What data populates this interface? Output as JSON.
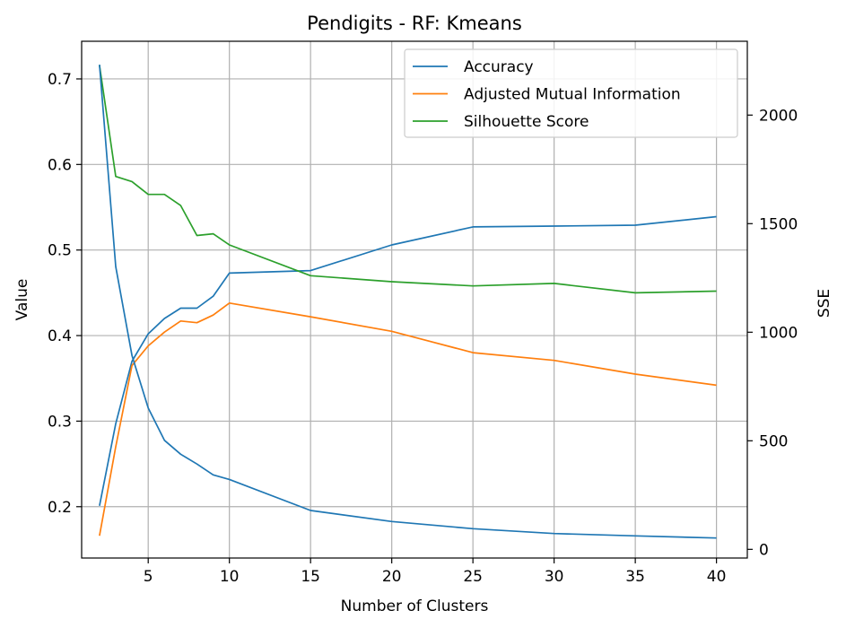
{
  "chart_data": {
    "type": "line",
    "title": "Pendigits - RF: Kmeans",
    "xlabel": "Number of Clusters",
    "ylabel": "Value",
    "y2label": "SSE",
    "xlim": [
      0.9,
      41.9
    ],
    "ylim": [
      0.14,
      0.744
    ],
    "y2lim": [
      -40,
      2340
    ],
    "xticks": [
      5,
      10,
      15,
      20,
      25,
      30,
      35,
      40
    ],
    "yticks": [
      0.2,
      0.3,
      0.4,
      0.5,
      0.6,
      0.7
    ],
    "y2ticks": [
      0,
      500,
      1000,
      1500,
      2000
    ],
    "grid": true,
    "legend_position": "top-right",
    "x": [
      2,
      3,
      4,
      5,
      6,
      7,
      8,
      9,
      10,
      15,
      20,
      25,
      30,
      35,
      40
    ],
    "series": [
      {
        "name": "Accuracy",
        "color": "#1f77b4",
        "axis": "left",
        "values": [
          0.201,
          0.297,
          0.37,
          0.402,
          0.42,
          0.432,
          0.432,
          0.446,
          0.473,
          0.476,
          0.506,
          0.527,
          0.528,
          0.529,
          0.539
        ]
      },
      {
        "name": "Adjusted Mutual Information",
        "color": "#ff7f0e",
        "axis": "left",
        "values": [
          0.166,
          0.27,
          0.365,
          0.388,
          0.404,
          0.417,
          0.415,
          0.424,
          0.438,
          0.422,
          0.405,
          0.38,
          0.371,
          0.355,
          0.342
        ]
      },
      {
        "name": "Silhouette Score",
        "color": "#2ca02c",
        "axis": "left",
        "values": [
          0.716,
          0.586,
          0.58,
          0.565,
          0.565,
          0.552,
          0.517,
          0.519,
          0.506,
          0.47,
          0.463,
          0.458,
          0.461,
          0.45,
          0.452
        ]
      },
      {
        "name": "",
        "color": "#1f77b4",
        "axis": "right",
        "values": [
          2232,
          1302,
          893,
          651,
          502,
          438,
          393,
          343,
          322,
          179,
          128,
          95,
          73,
          62,
          52
        ]
      }
    ]
  }
}
